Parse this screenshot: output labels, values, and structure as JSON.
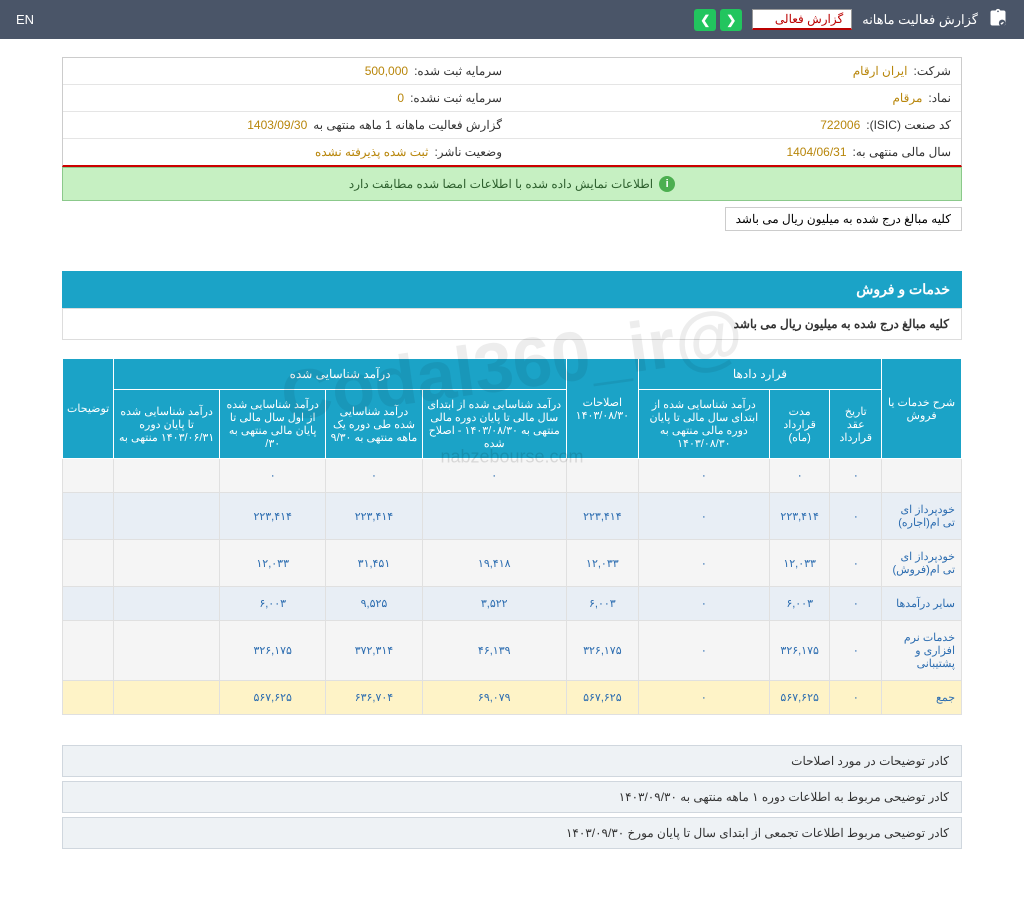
{
  "topbar": {
    "title": "گزارش فعالیت ماهانه",
    "dropdown": "گزارش فعالی",
    "lang": "EN"
  },
  "info": {
    "company_label": "شرکت:",
    "company_value": "ایران ارقام",
    "capital_reg_label": "سرمایه ثبت شده:",
    "capital_reg_value": "500,000",
    "symbol_label": "نماد:",
    "symbol_value": "مرقام",
    "capital_unreg_label": "سرمایه ثبت نشده:",
    "capital_unreg_value": "0",
    "isic_label": "کد صنعت (ISIC):",
    "isic_value": "722006",
    "report_label": "گزارش فعالیت ماهانه 1 ماهه منتهی به",
    "report_value": "1403/09/30",
    "fiscal_label": "سال مالی منتهی به:",
    "fiscal_value": "1404/06/31",
    "status_label": "وضعیت ناشر:",
    "status_value": "ثبت شده پذیرفته نشده"
  },
  "banner": "اطلاعات نمایش داده شده با اطلاعات امضا شده مطابقت دارد",
  "note": "کلیه مبالغ درج شده به میلیون ریال می باشد",
  "section_title": "خدمات و فروش",
  "section_sub": "کلیه مبالغ درج شده به میلیون ریال می باشد",
  "headers": {
    "col1": "شرح خدمات یا فروش",
    "group1": "قرارد دادها",
    "g1_1": "تاریخ عقد قرارداد",
    "g1_2": "مدت قرارداد (ماه)",
    "g1_3": "درآمد شناسایی شده از ابتدای سال مالی تا پایان دوره مالی منتهی به ۱۴۰۳/۰۸/۳۰",
    "col_adj": "اصلاحات ۱۴۰۳/۰۸/۳۰",
    "group2": "درآمد شناسایی شده",
    "g2_1": "درآمد شناسایی شده از ابتدای سال مالی تا پایان دوره مالی منتهی به ۱۴۰۳/۰۸/۳۰ - اصلاح شده",
    "g2_2": "درآمد شناسایی شده طی دوره یک ماهه منتهی به ۹/۳۰",
    "g2_3": "درآمد شناسایی شده از اول سال مالی تا پایان مالی منتهی به ۳۰/",
    "g2_4": "درآمد شناسایی شده تا پایان دوره ۱۴۰۳/۰۶/۳۱ منتهی به",
    "col_notes": "توضیحات"
  },
  "rows": [
    {
      "label": "",
      "c1": "۰",
      "c2": "۰",
      "c3": "۰",
      "c4": "",
      "c5": "۰",
      "c6": "۰",
      "c7": "۰",
      "c8": ""
    },
    {
      "label": "خودپرداز ای تی ام(اجاره)",
      "c1": "۰",
      "c2": "۲۲۳,۴۱۴",
      "c3": "۰",
      "c4": "۲۲۳,۴۱۴",
      "c5": "",
      "c6": "۲۲۳,۴۱۴",
      "c7": "۲۲۳,۴۱۴",
      "c8": ""
    },
    {
      "label": "خودپرداز ای تی ام(فروش)",
      "c1": "۰",
      "c2": "۱۲,۰۳۳",
      "c3": "۰",
      "c4": "۱۲,۰۳۳",
      "c5": "۱۹,۴۱۸",
      "c6": "۳۱,۴۵۱",
      "c7": "۱۲,۰۳۳",
      "c8": ""
    },
    {
      "label": "سایر درآمدها",
      "c1": "۰",
      "c2": "۶,۰۰۳",
      "c3": "۰",
      "c4": "۶,۰۰۳",
      "c5": "۳,۵۲۲",
      "c6": "۹,۵۲۵",
      "c7": "۶,۰۰۳",
      "c8": ""
    },
    {
      "label": "خدمات نرم افزاری و پشتیبانی",
      "c1": "۰",
      "c2": "۳۲۶,۱۷۵",
      "c3": "۰",
      "c4": "۳۲۶,۱۷۵",
      "c5": "۴۶,۱۳۹",
      "c6": "۳۷۲,۳۱۴",
      "c7": "۳۲۶,۱۷۵",
      "c8": ""
    }
  ],
  "total": {
    "label": "جمع",
    "c1": "۰",
    "c2": "۵۶۷,۶۲۵",
    "c3": "۰",
    "c4": "۵۶۷,۶۲۵",
    "c5": "۶۹,۰۷۹",
    "c6": "۶۳۶,۷۰۴",
    "c7": "۵۶۷,۶۲۵",
    "c8": ""
  },
  "footer": {
    "f1": "کادر توضیحات در مورد اصلاحات",
    "f2": "کادر توضیحی مربوط به اطلاعات دوره ۱ ماهه منتهی به ۱۴۰۳/۰۹/۳۰",
    "f3": "کادر توضیحی مربوط اطلاعات تجمعی از ابتدای سال تا پایان مورخ ۱۴۰۳/۰۹/۳۰"
  },
  "watermark1": "@Codal360_ir",
  "watermark2": "nabzebourse.com"
}
